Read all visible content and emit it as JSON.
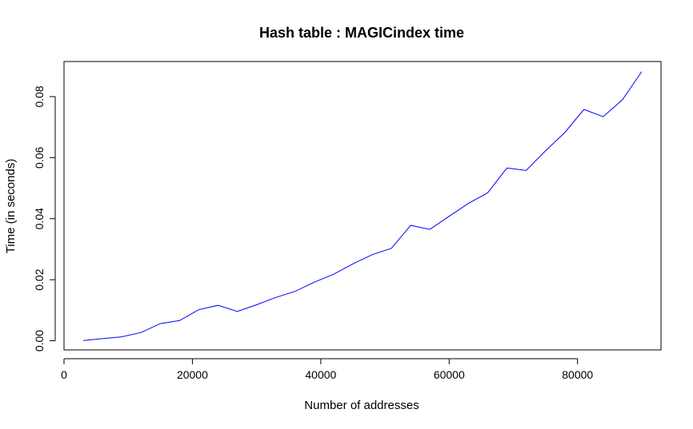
{
  "chart_data": {
    "type": "line",
    "title": "Hash table : MAGICindex time",
    "xlabel": "Number of addresses",
    "ylabel": "Time (in seconds)",
    "xlim": [
      0,
      93000
    ],
    "ylim": [
      -0.003,
      0.0915
    ],
    "x_ticks": [
      0,
      20000,
      40000,
      60000,
      80000
    ],
    "y_ticks": [
      0.0,
      0.02,
      0.04,
      0.06,
      0.08
    ],
    "x_tick_labels": [
      "0",
      "20000",
      "40000",
      "60000",
      "80000"
    ],
    "y_tick_labels": [
      "0.00",
      "0.02",
      "0.04",
      "0.06",
      "0.08"
    ],
    "grid": false,
    "series": [
      {
        "color": "#0000ff",
        "x": [
          3000,
          6000,
          9000,
          12000,
          15000,
          18000,
          21000,
          24000,
          27000,
          30000,
          33000,
          36000,
          39000,
          42000,
          45000,
          48000,
          51000,
          54000,
          57000,
          60000,
          63000,
          66000,
          69000,
          72000,
          75000,
          78000,
          81000,
          84000,
          87000,
          90000
        ],
        "y": [
          0.0001,
          0.0007,
          0.0013,
          0.0027,
          0.0056,
          0.0066,
          0.0102,
          0.0116,
          0.0096,
          0.0118,
          0.0142,
          0.0162,
          0.0192,
          0.0218,
          0.0252,
          0.0282,
          0.0303,
          0.0378,
          0.0365,
          0.0408,
          0.045,
          0.0485,
          0.0566,
          0.0558,
          0.0622,
          0.0682,
          0.0758,
          0.0734,
          0.079,
          0.0882
        ]
      }
    ]
  }
}
